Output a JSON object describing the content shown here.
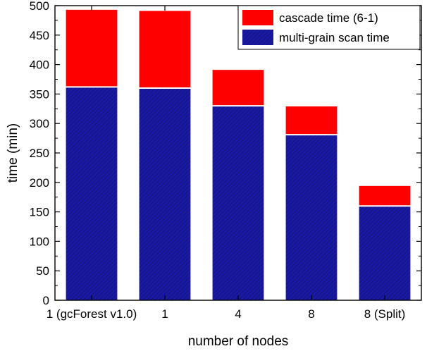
{
  "chart_data": {
    "type": "bar",
    "stacked": true,
    "categories": [
      "1 (gcForest v1.0)",
      "1",
      "4",
      "8",
      "8 (Split)"
    ],
    "series": [
      {
        "name": "multi-grain scan time",
        "values": [
          362,
          360,
          330,
          281,
          160
        ],
        "color": "#1a1aa6",
        "pattern": "diagonal-hatch"
      },
      {
        "name": "cascade time (6-1)",
        "values": [
          131,
          131,
          61,
          48,
          34
        ],
        "color": "#ff0000"
      }
    ],
    "title": "",
    "xlabel": "number of nodes",
    "ylabel": "time (min)",
    "ylim": [
      0,
      500
    ],
    "yticks": [
      0,
      50,
      100,
      150,
      200,
      250,
      300,
      350,
      400,
      450,
      500
    ],
    "grid": false,
    "legend_position": "top-right",
    "legend_order": [
      "cascade time (6-1)",
      "multi-grain scan time"
    ]
  }
}
